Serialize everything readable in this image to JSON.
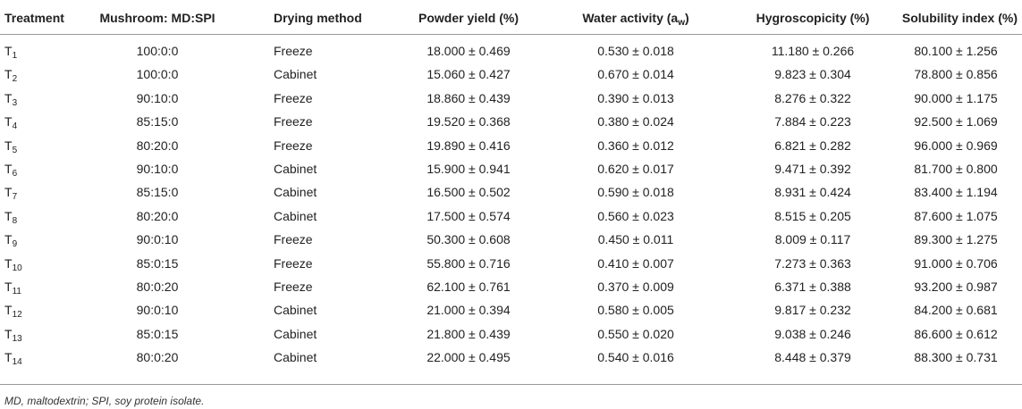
{
  "table": {
    "headers": [
      "Treatment",
      "Mushroom: MD:SPI",
      "Drying method",
      "Powder yield (%)",
      {
        "base": "Water activity (a",
        "sub": "w",
        "end": ")"
      },
      "Hygroscopicity (%)",
      "Solubility index (%)"
    ],
    "rows": [
      [
        {
          "base": "T",
          "sub": "1"
        },
        "100:0:0",
        "Freeze",
        "18.000 ± 0.469",
        "0.530 ± 0.018",
        "11.180 ± 0.266",
        "80.100 ± 1.256"
      ],
      [
        {
          "base": "T",
          "sub": "2"
        },
        "100:0:0",
        "Cabinet",
        "15.060 ± 0.427",
        "0.670 ± 0.014",
        "9.823 ± 0.304",
        "78.800 ± 0.856"
      ],
      [
        {
          "base": "T",
          "sub": "3"
        },
        "90:10:0",
        "Freeze",
        "18.860 ± 0.439",
        "0.390 ± 0.013",
        "8.276 ± 0.322",
        "90.000 ± 1.175"
      ],
      [
        {
          "base": "T",
          "sub": "4"
        },
        "85:15:0",
        "Freeze",
        "19.520 ± 0.368",
        "0.380 ± 0.024",
        "7.884 ± 0.223",
        "92.500 ± 1.069"
      ],
      [
        {
          "base": "T",
          "sub": "5"
        },
        "80:20:0",
        "Freeze",
        "19.890 ± 0.416",
        "0.360 ± 0.012",
        "6.821 ± 0.282",
        "96.000 ± 0.969"
      ],
      [
        {
          "base": "T",
          "sub": "6"
        },
        "90:10:0",
        "Cabinet",
        "15.900 ± 0.941",
        "0.620 ± 0.017",
        "9.471 ± 0.392",
        "81.700 ± 0.800"
      ],
      [
        {
          "base": "T",
          "sub": "7"
        },
        "85:15:0",
        "Cabinet",
        "16.500 ± 0.502",
        "0.590 ± 0.018",
        "8.931 ± 0.424",
        "83.400 ± 1.194"
      ],
      [
        {
          "base": "T",
          "sub": "8"
        },
        "80:20:0",
        "Cabinet",
        "17.500 ± 0.574",
        "0.560 ± 0.023",
        "8.515 ± 0.205",
        "87.600 ± 1.075"
      ],
      [
        {
          "base": "T",
          "sub": "9"
        },
        "90:0:10",
        "Freeze",
        "50.300 ± 0.608",
        "0.450 ± 0.011",
        "8.009 ± 0.117",
        "89.300 ± 1.275"
      ],
      [
        {
          "base": "T",
          "sub": "10"
        },
        "85:0:15",
        "Freeze",
        "55.800 ± 0.716",
        "0.410 ± 0.007",
        "7.273 ± 0.363",
        "91.000 ± 0.706"
      ],
      [
        {
          "base": "T",
          "sub": "11"
        },
        "80:0:20",
        "Freeze",
        "62.100 ± 0.761",
        "0.370 ± 0.009",
        "6.371 ± 0.388",
        "93.200 ± 0.987"
      ],
      [
        {
          "base": "T",
          "sub": "12"
        },
        "90:0:10",
        "Cabinet",
        "21.000 ± 0.394",
        "0.580 ± 0.005",
        "9.817 ± 0.232",
        "84.200 ± 0.681"
      ],
      [
        {
          "base": "T",
          "sub": "13"
        },
        "85:0:15",
        "Cabinet",
        "21.800 ± 0.439",
        "0.550 ± 0.020",
        "9.038 ± 0.246",
        "86.600 ± 0.612"
      ],
      [
        {
          "base": "T",
          "sub": "14"
        },
        "80:0:20",
        "Cabinet",
        "22.000 ± 0.495",
        "0.540 ± 0.016",
        "8.448 ± 0.379",
        "88.300 ± 0.731"
      ]
    ],
    "footnote": "MD, maltodextrin; SPI, soy protein isolate."
  }
}
